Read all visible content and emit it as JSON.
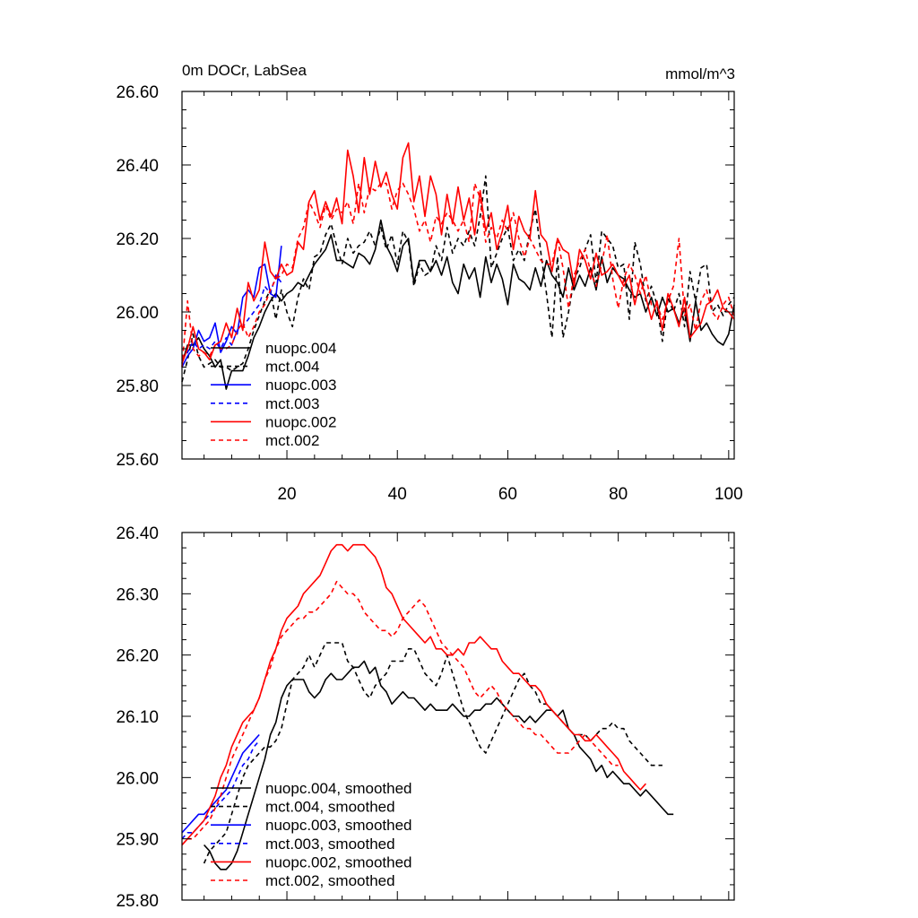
{
  "chart_data": [
    {
      "type": "line",
      "title": "0m DOCr, LabSea",
      "units": "mmol/m^3",
      "xlim": [
        1,
        101
      ],
      "ylim": [
        25.6,
        26.6
      ],
      "xticks": [
        20,
        40,
        60,
        80,
        100
      ],
      "xtick_labels": [
        "20",
        "40",
        "60",
        "80",
        "100"
      ],
      "yticks": [
        25.6,
        25.8,
        26.0,
        26.2,
        26.4,
        26.6
      ],
      "ytick_labels": [
        "25.60",
        "25.80",
        "26.00",
        "26.20",
        "26.40",
        "26.60"
      ],
      "legend": [
        "nuopc.004",
        "mct.004",
        "nuopc.003",
        "mct.003",
        "nuopc.002",
        "mct.002"
      ],
      "series": [
        {
          "name": "nuopc.004",
          "color": "#000000",
          "dash": "solid",
          "x_start": 1,
          "values": [
            25.86,
            25.91,
            25.91,
            25.93,
            25.9,
            25.88,
            25.85,
            25.87,
            25.79,
            25.84,
            25.84,
            25.84,
            25.88,
            25.93,
            25.96,
            26.0,
            26.03,
            26.05,
            26.03,
            26.05,
            26.06,
            26.08,
            26.07,
            26.1,
            26.13,
            26.15,
            26.17,
            26.21,
            26.14,
            26.14,
            26.13,
            26.12,
            26.16,
            26.15,
            26.13,
            26.17,
            26.25,
            26.18,
            26.15,
            26.11,
            26.18,
            26.2,
            26.08,
            26.14,
            26.14,
            26.11,
            26.14,
            26.1,
            26.15,
            26.08,
            26.05,
            26.13,
            26.09,
            26.12,
            26.04,
            26.15,
            26.08,
            26.13,
            26.09,
            26.02,
            26.13,
            26.09,
            26.08,
            26.06,
            26.12,
            26.07,
            26.14,
            26.1,
            26.08,
            26.04,
            26.12,
            26.06,
            26.1,
            26.07,
            26.12,
            26.06,
            26.15,
            26.08,
            26.12,
            26.1,
            26.09,
            26.06,
            26.04,
            26.05,
            26.0,
            26.04,
            25.99,
            26.04,
            26.0,
            26.01,
            25.97,
            26.01,
            25.92,
            26.03,
            25.95,
            25.97,
            25.94,
            25.92,
            25.91,
            25.94,
            26.02
          ]
        },
        {
          "name": "mct.004",
          "color": "#000000",
          "dash": "dashed",
          "x_start": 1,
          "values": [
            25.81,
            25.87,
            25.94,
            25.88,
            25.85,
            25.86,
            25.87,
            25.85,
            25.85,
            25.84,
            25.85,
            25.86,
            25.9,
            25.95,
            25.99,
            26.03,
            26.06,
            25.98,
            26.06,
            26.0,
            25.96,
            26.04,
            26.09,
            26.06,
            26.15,
            26.16,
            26.21,
            26.24,
            26.18,
            26.13,
            26.2,
            26.16,
            26.18,
            26.19,
            26.22,
            26.18,
            26.23,
            26.17,
            26.21,
            26.13,
            26.22,
            26.19,
            26.07,
            26.13,
            26.1,
            26.11,
            26.18,
            26.14,
            26.23,
            26.16,
            26.2,
            26.18,
            26.22,
            26.18,
            26.26,
            26.37,
            26.12,
            26.16,
            26.2,
            26.23,
            26.14,
            26.17,
            26.14,
            26.22,
            26.28,
            26.16,
            26.05,
            25.93,
            26.15,
            25.93,
            26.0,
            26.09,
            26.12,
            26.17,
            26.21,
            26.08,
            26.22,
            26.2,
            26.18,
            26.12,
            26.13,
            25.98,
            26.19,
            26.13,
            26.03,
            26.07,
            26.02,
            25.92,
            26.04,
            26.0,
            26.05,
            25.96,
            26.11,
            26.03,
            26.12,
            26.13,
            26.0,
            26.02,
            25.99,
            26.02,
            26.04
          ]
        },
        {
          "name": "nuopc.003",
          "color": "#0000ff",
          "dash": "solid",
          "x_start": 1,
          "values": [
            25.85,
            25.88,
            25.9,
            25.95,
            25.92,
            25.93,
            25.97,
            25.89,
            25.92,
            25.96,
            25.94,
            26.04,
            26.06,
            26.04,
            26.12,
            26.13,
            26.05,
            26.04,
            26.18
          ]
        },
        {
          "name": "mct.003",
          "color": "#0000ff",
          "dash": "dashed",
          "x_start": 1,
          "values": [
            25.87,
            25.89,
            25.92,
            25.9,
            25.91,
            25.9,
            25.92,
            25.9,
            25.93,
            25.91,
            25.95,
            25.96,
            25.98,
            26.0,
            26.02,
            26.07,
            26.05,
            26.1,
            26.08
          ]
        },
        {
          "name": "nuopc.002",
          "color": "#ff0000",
          "dash": "solid",
          "x_start": 1,
          "values": [
            25.86,
            25.9,
            25.96,
            25.9,
            25.89,
            25.87,
            25.91,
            25.92,
            25.97,
            25.93,
            26.01,
            25.95,
            26.08,
            26.03,
            26.06,
            26.19,
            26.11,
            26.09,
            26.13,
            26.1,
            26.11,
            26.19,
            26.17,
            26.3,
            26.33,
            26.25,
            26.3,
            26.26,
            26.31,
            26.24,
            26.44,
            26.37,
            26.27,
            26.42,
            26.32,
            26.41,
            26.34,
            26.38,
            26.32,
            26.28,
            26.42,
            26.46,
            26.3,
            26.37,
            26.26,
            26.37,
            26.32,
            26.21,
            26.32,
            26.24,
            26.34,
            26.25,
            26.31,
            26.21,
            26.33,
            26.22,
            26.27,
            26.17,
            26.22,
            26.29,
            26.17,
            26.26,
            26.22,
            26.2,
            26.33,
            26.21,
            26.19,
            26.11,
            26.2,
            26.17,
            26.16,
            26.07,
            26.17,
            26.14,
            26.09,
            26.16,
            26.1,
            26.11,
            26.13,
            26.1,
            26.07,
            26.1,
            26.02,
            26.09,
            26.04,
            25.98,
            26.03,
            25.95,
            26.05,
            26.01,
            25.96,
            26.04,
            25.93,
            25.95,
            25.97,
            26.02,
            26.03,
            26.06,
            26.01,
            26.0,
            25.98
          ]
        },
        {
          "name": "mct.002",
          "color": "#ff0000",
          "dash": "dashed",
          "x_start": 1,
          "values": [
            25.85,
            26.03,
            25.9,
            25.88,
            25.89,
            25.88,
            25.91,
            25.9,
            25.9,
            25.91,
            25.95,
            25.97,
            25.93,
            25.96,
            26.0,
            26.02,
            26.06,
            26.09,
            26.1,
            26.13,
            26.12,
            26.2,
            26.23,
            26.3,
            26.27,
            26.23,
            26.29,
            26.25,
            26.28,
            26.27,
            26.3,
            26.24,
            26.35,
            26.27,
            26.34,
            26.33,
            26.35,
            26.35,
            26.28,
            26.33,
            26.35,
            26.32,
            26.28,
            26.22,
            26.25,
            26.19,
            26.26,
            26.24,
            26.27,
            26.25,
            26.22,
            26.25,
            26.19,
            26.35,
            26.31,
            26.19,
            26.23,
            26.2,
            26.25,
            26.22,
            26.27,
            26.2,
            26.15,
            26.2,
            26.17,
            26.14,
            26.13,
            26.13,
            26.2,
            26.12,
            26.01,
            26.1,
            26.14,
            26.17,
            26.11,
            26.07,
            26.13,
            26.21,
            26.09,
            26.01,
            26.09,
            26.13,
            26.1,
            26.05,
            26.1,
            26.02,
            26.02,
            25.98,
            26.03,
            26.07,
            26.2,
            25.99,
            26.02,
            25.95,
            26.03,
            26.06,
            26.0,
            25.98,
            26.02,
            26.04,
            25.99
          ]
        }
      ]
    },
    {
      "type": "line",
      "title": "",
      "units": "",
      "xlim": [
        1,
        101
      ],
      "ylim": [
        25.8,
        26.4
      ],
      "xticks": [
        20,
        40,
        60,
        80,
        100
      ],
      "xtick_labels": [],
      "yticks": [
        25.8,
        25.9,
        26.0,
        26.1,
        26.2,
        26.3,
        26.4
      ],
      "ytick_labels": [
        "25.80",
        "25.90",
        "26.00",
        "26.10",
        "26.20",
        "26.30",
        "26.40"
      ],
      "legend": [
        "nuopc.004, smoothed",
        "mct.004, smoothed",
        "nuopc.003, smoothed",
        "mct.003, smoothed",
        "nuopc.002, smoothed",
        "mct.002, smoothed"
      ],
      "series": [
        {
          "name": "nuopc.004, smoothed",
          "color": "#000000",
          "dash": "solid",
          "x_start": 5,
          "values": [
            25.89,
            25.88,
            25.86,
            25.85,
            25.85,
            25.86,
            25.88,
            25.91,
            25.94,
            25.97,
            26.0,
            26.03,
            26.07,
            26.09,
            26.13,
            26.15,
            26.16,
            26.16,
            26.16,
            26.14,
            26.13,
            26.14,
            26.16,
            26.17,
            26.16,
            26.16,
            26.17,
            26.18,
            26.18,
            26.19,
            26.17,
            26.18,
            26.15,
            26.14,
            26.12,
            26.13,
            26.14,
            26.13,
            26.13,
            26.12,
            26.11,
            26.12,
            26.11,
            26.11,
            26.11,
            26.12,
            26.11,
            26.1,
            26.1,
            26.11,
            26.11,
            26.12,
            26.12,
            26.13,
            26.12,
            26.11,
            26.1,
            26.1,
            26.09,
            26.1,
            26.09,
            26.1,
            26.11,
            26.11,
            26.1,
            26.11,
            26.08,
            26.07,
            26.05,
            26.04,
            26.03,
            26.01,
            26.02,
            26.0,
            26.01,
            26.0,
            25.99,
            25.99,
            25.98,
            25.97,
            25.98,
            25.97,
            25.96,
            25.95,
            25.94,
            25.94
          ]
        },
        {
          "name": "mct.004, smoothed",
          "color": "#000000",
          "dash": "dashed",
          "x_start": 5,
          "values": [
            25.86,
            25.88,
            25.89,
            25.9,
            25.91,
            25.94,
            25.97,
            26.0,
            26.02,
            26.03,
            26.04,
            26.05,
            26.05,
            26.06,
            26.08,
            26.12,
            26.16,
            26.17,
            26.18,
            26.2,
            26.18,
            26.2,
            26.22,
            26.22,
            26.22,
            26.22,
            26.19,
            26.18,
            26.16,
            26.14,
            26.13,
            26.15,
            26.16,
            26.17,
            26.19,
            26.19,
            26.19,
            26.21,
            26.21,
            26.19,
            26.17,
            26.16,
            26.15,
            26.17,
            26.2,
            26.17,
            26.14,
            26.11,
            26.09,
            26.07,
            26.05,
            26.04,
            26.06,
            26.08,
            26.1,
            26.12,
            26.14,
            26.16,
            26.17,
            26.15,
            26.14,
            26.12,
            26.12,
            26.11,
            26.1,
            26.09,
            26.08,
            26.07,
            26.07,
            26.07,
            26.06,
            26.07,
            26.08,
            26.08,
            26.09,
            26.08,
            26.08,
            26.06,
            26.05,
            26.04,
            26.03,
            26.02,
            26.02,
            26.02
          ]
        },
        {
          "name": "nuopc.003, smoothed",
          "color": "#0000ff",
          "dash": "solid",
          "x_start": 1,
          "values": [
            25.91,
            25.92,
            25.93,
            25.94,
            25.94,
            25.95,
            25.96,
            25.97,
            25.98,
            26.0,
            26.02,
            26.04,
            26.05,
            26.06,
            26.07
          ]
        },
        {
          "name": "mct.003, smoothed",
          "color": "#0000ff",
          "dash": "dashed",
          "x_start": 1,
          "values": [
            25.9,
            25.91,
            25.91,
            25.92,
            25.93,
            25.94,
            25.95,
            25.96,
            25.97,
            25.98,
            26.0,
            26.02,
            26.03,
            26.05,
            26.06
          ]
        },
        {
          "name": "nuopc.002, smoothed",
          "color": "#ff0000",
          "dash": "solid",
          "x_start": 1,
          "values": [
            25.89,
            25.9,
            25.91,
            25.92,
            25.93,
            25.95,
            25.97,
            26.0,
            26.02,
            26.05,
            26.07,
            26.09,
            26.1,
            26.11,
            26.13,
            26.16,
            26.19,
            26.21,
            26.24,
            26.26,
            26.27,
            26.28,
            26.3,
            26.31,
            26.32,
            26.33,
            26.35,
            26.37,
            26.38,
            26.38,
            26.37,
            26.38,
            26.38,
            26.38,
            26.37,
            26.36,
            26.34,
            26.31,
            26.3,
            26.28,
            26.26,
            26.25,
            26.24,
            26.23,
            26.22,
            26.23,
            26.21,
            26.21,
            26.2,
            26.2,
            26.21,
            26.2,
            26.22,
            26.22,
            26.23,
            26.22,
            26.21,
            26.21,
            26.19,
            26.18,
            26.17,
            26.17,
            26.16,
            26.15,
            26.15,
            26.14,
            26.12,
            26.11,
            26.1,
            26.09,
            26.08,
            26.07,
            26.07,
            26.06,
            26.06,
            26.07,
            26.06,
            26.05,
            26.04,
            26.03,
            26.01,
            26.0,
            25.99,
            25.98,
            25.99
          ]
        },
        {
          "name": "mct.002, smoothed",
          "color": "#ff0000",
          "dash": "dashed",
          "x_start": 1,
          "values": [
            25.89,
            25.9,
            25.9,
            25.91,
            25.92,
            25.93,
            25.95,
            25.97,
            26.0,
            26.03,
            26.05,
            26.07,
            26.09,
            26.11,
            26.13,
            26.16,
            26.18,
            26.21,
            26.23,
            26.24,
            26.25,
            26.26,
            26.26,
            26.27,
            26.27,
            26.28,
            26.29,
            26.3,
            26.32,
            26.31,
            26.3,
            26.3,
            26.29,
            26.27,
            26.26,
            26.25,
            26.24,
            26.24,
            26.23,
            26.24,
            26.26,
            26.27,
            26.28,
            26.29,
            26.28,
            26.26,
            26.24,
            26.22,
            26.21,
            26.2,
            26.19,
            26.18,
            26.16,
            26.14,
            26.13,
            26.14,
            26.15,
            26.14,
            26.12,
            26.11,
            26.1,
            26.09,
            26.08,
            26.08,
            26.07,
            26.07,
            26.06,
            26.05,
            26.04,
            26.04,
            26.04,
            26.05,
            26.06,
            26.07,
            26.06,
            26.05,
            26.04,
            26.03,
            26.02,
            26.02
          ]
        }
      ]
    }
  ]
}
